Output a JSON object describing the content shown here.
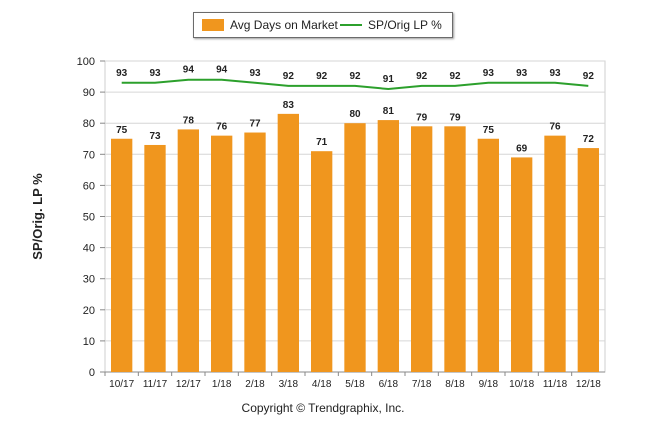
{
  "chart_data": {
    "type": "bar",
    "categories": [
      "10/17",
      "11/17",
      "12/17",
      "1/18",
      "2/18",
      "3/18",
      "4/18",
      "5/18",
      "6/18",
      "7/18",
      "8/18",
      "9/18",
      "10/18",
      "11/18",
      "12/18"
    ],
    "series": [
      {
        "name": "Avg Days on Market",
        "type": "bar",
        "color": "#f0961e",
        "values": [
          75,
          73,
          78,
          76,
          77,
          83,
          71,
          80,
          81,
          79,
          79,
          75,
          69,
          76,
          72
        ]
      },
      {
        "name": "SP/Orig LP %",
        "type": "line",
        "color": "#2ca02c",
        "values": [
          93,
          93,
          94,
          94,
          93,
          92,
          92,
          92,
          91,
          92,
          92,
          93,
          93,
          93,
          92
        ]
      }
    ],
    "ylabel": "SP/Orig. LP %",
    "xlabel": "",
    "ylim": [
      0,
      100
    ],
    "yticks": [
      0,
      10,
      20,
      30,
      40,
      50,
      60,
      70,
      80,
      90,
      100
    ],
    "grid": true,
    "legend": "top-center"
  },
  "footer": {
    "copyright": "Copyright © Trendgraphix, Inc."
  },
  "legend": {
    "bar_label": "Avg Days on Market",
    "line_label": "SP/Orig LP %"
  }
}
